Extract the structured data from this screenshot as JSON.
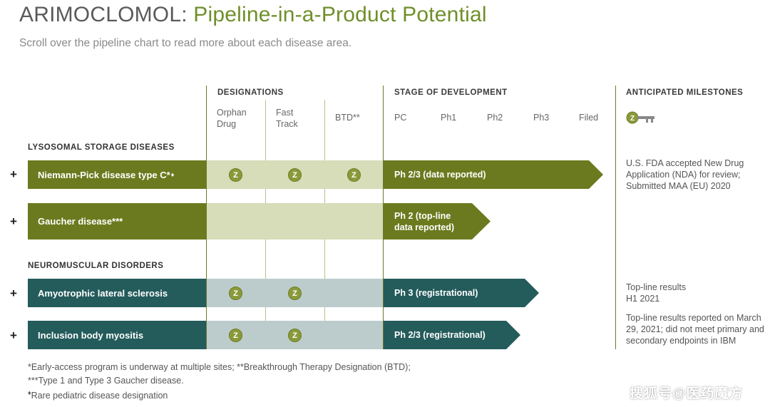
{
  "header": {
    "brand": "ARIMOCLOMOL:",
    "title": " Pipeline-in-a-Product Potential",
    "subtitle": "Scroll over the pipeline chart to read more about each disease area."
  },
  "columns": {
    "designations": "DESIGNATIONS",
    "stage": "STAGE OF DEVELOPMENT",
    "milestones": "ANTICIPATED MILESTONES",
    "orphan_l1": "Orphan",
    "orphan_l2": "Drug",
    "fast_l1": "Fast",
    "fast_l2": "Track",
    "btd": "BTD**",
    "stages": [
      "PC",
      "Ph1",
      "Ph2",
      "Ph3",
      "Filed"
    ]
  },
  "sections": {
    "lysosomal": "LYSOSOMAL STORAGE DISEASES",
    "neuromuscular": "NEUROMUSCULAR DISORDERS"
  },
  "rows": [
    {
      "expand": "+",
      "name": "Niemann-Pick disease type C*",
      "mark": "♦",
      "badge": "Z",
      "stage_l1": "Ph 2/3 (data reported)",
      "stage_l2": "",
      "milestone": "U.S. FDA accepted New Drug Application (NDA) for review; Submitted MAA (EU) 2020"
    },
    {
      "expand": "+",
      "name": "Gaucher disease***",
      "stage_l1": "Ph 2 (top-line",
      "stage_l2": "data reported)",
      "milestone": ""
    },
    {
      "expand": "+",
      "name": "Amyotrophic lateral sclerosis",
      "badge": "Z",
      "stage_l1": "Ph 3 (registrational)",
      "stage_l2": "",
      "milestone_l1": "Top-line results",
      "milestone_l2": "H1 2021"
    },
    {
      "expand": "+",
      "name": "Inclusion body myositis",
      "badge": "Z",
      "stage_l1": "Ph 2/3 (registrational)",
      "stage_l2": "",
      "milestone": "Top-line results reported on March 29, 2021; did not meet primary and secondary endpoints in IBM"
    }
  ],
  "footnotes": {
    "line1": "*Early-access program is underway at multiple sites; **Breakthrough Therapy Designation (BTD);",
    "line2": "***Type 1 and Type 3 Gaucher disease.",
    "line3": "Rare pediatric disease designation",
    "mark": "♦"
  },
  "watermark": "搜狐号@医药魔方",
  "colors": {
    "olive": "#6b7a1e",
    "teal": "#245b5b",
    "accent": "#6f8f2a"
  }
}
